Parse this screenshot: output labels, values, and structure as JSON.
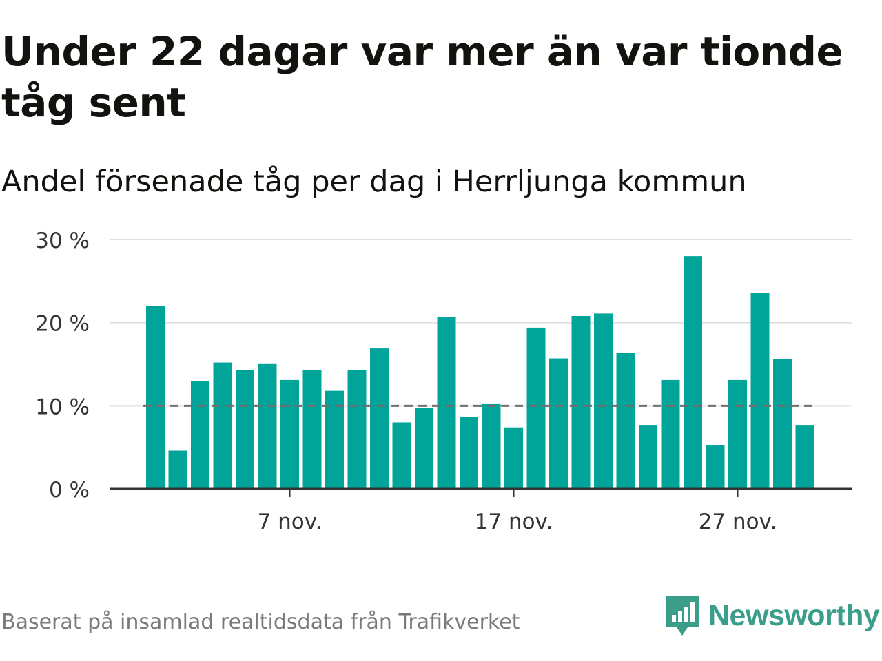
{
  "title": "Under 22 dagar var mer än var tionde tåg sent",
  "subtitle": "Andel försenade tåg per dag i Herrljunga kommun",
  "source": "Baserat på insamlad realtidsdata från Trafikverket",
  "brand": "Newsworthy",
  "colors": {
    "bar": "#00a499",
    "grid": "#dedede",
    "axis": "#333333",
    "reference_line": "#6e6e6e",
    "brand": "#3a9e8a"
  },
  "chart_data": {
    "type": "bar",
    "x_unit": "day of November",
    "categories": [
      1,
      2,
      3,
      4,
      5,
      6,
      7,
      8,
      9,
      10,
      11,
      12,
      13,
      14,
      15,
      16,
      17,
      18,
      19,
      20,
      21,
      22,
      23,
      24,
      25,
      26,
      27,
      28,
      29,
      30
    ],
    "values": [
      22.0,
      4.6,
      13.0,
      15.2,
      14.3,
      15.1,
      13.1,
      14.3,
      11.8,
      14.3,
      16.9,
      8.0,
      9.7,
      20.7,
      8.7,
      10.2,
      7.4,
      19.4,
      15.7,
      20.8,
      21.1,
      16.4,
      7.7,
      13.1,
      28.0,
      5.3,
      13.1,
      23.6,
      15.6,
      7.7
    ],
    "reference_line": 10,
    "ylim": [
      0,
      30
    ],
    "y_ticks": [
      {
        "value": 0,
        "label": "0 %"
      },
      {
        "value": 10,
        "label": "10 %"
      },
      {
        "value": 20,
        "label": "20 %"
      },
      {
        "value": 30,
        "label": "30 %"
      }
    ],
    "x_ticks": [
      {
        "day": 7,
        "label": "7 nov."
      },
      {
        "day": 17,
        "label": "17 nov."
      },
      {
        "day": 27,
        "label": "27 nov."
      }
    ],
    "grid": true,
    "legend": false
  }
}
